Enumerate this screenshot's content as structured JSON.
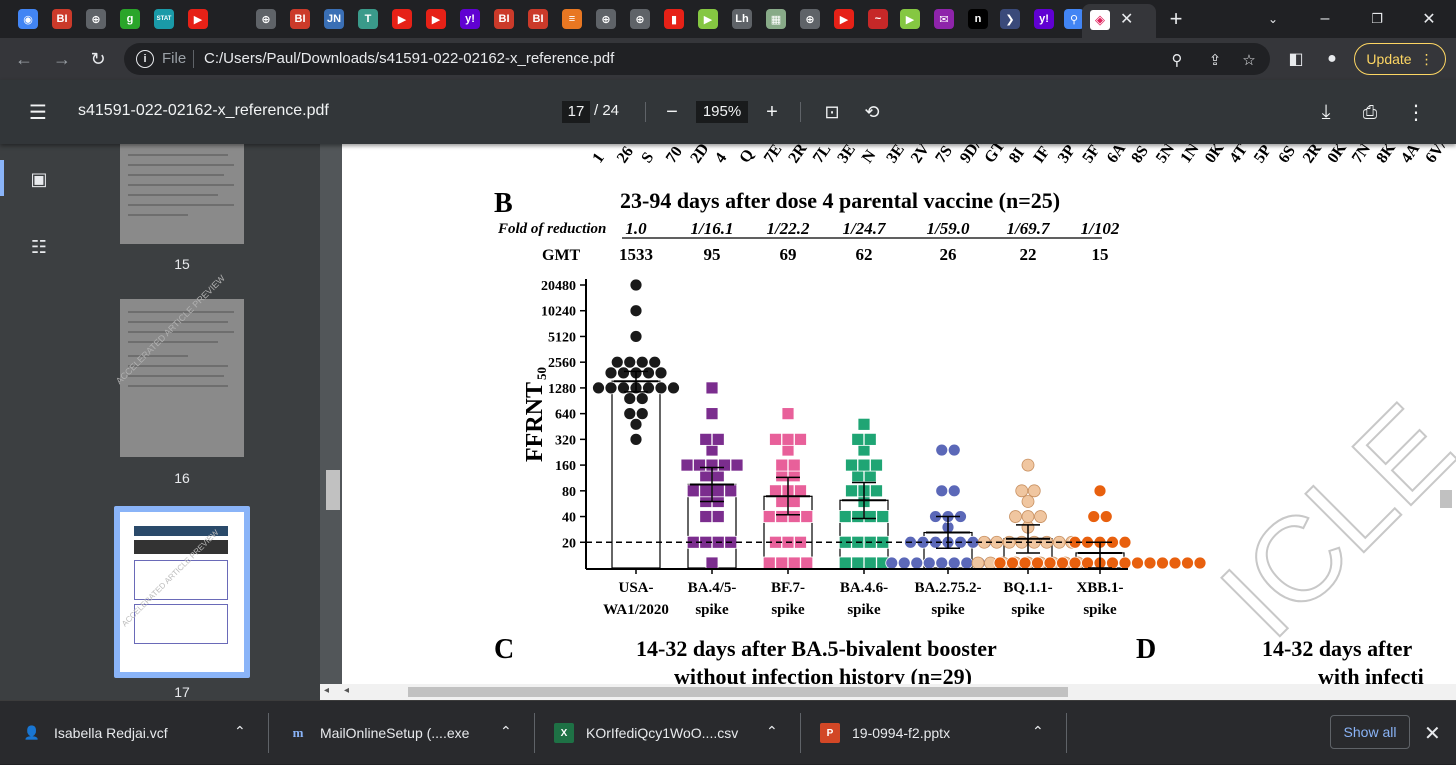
{
  "browser": {
    "active_tab_close": "✕",
    "new_tab": "+",
    "url_scheme": "File",
    "url": "C:/Users/Paul/Downloads/s41591-022-02162-x_reference.pdf",
    "update_label": "Update",
    "tab_icons": [
      {
        "name": "globe",
        "glyph": "◉",
        "color": "#4285f4"
      },
      {
        "name": "bi",
        "glyph": "BI",
        "color": "#cb3a2a"
      },
      {
        "name": "globe",
        "glyph": "⊕",
        "color": "#5f6368"
      },
      {
        "name": "g",
        "glyph": "g",
        "color": "#2aa52a"
      },
      {
        "name": "stat",
        "glyph": "STAT",
        "color": "#1a9aa8"
      },
      {
        "name": "youtube",
        "glyph": "▶",
        "color": "#e62117"
      },
      {
        "name": "globe",
        "glyph": "⊕",
        "color": "#5f6368"
      },
      {
        "name": "bi",
        "glyph": "BI",
        "color": "#cb3a2a"
      },
      {
        "name": "jn",
        "glyph": "JN",
        "color": "#3a6fb5"
      },
      {
        "name": "tg",
        "glyph": "T",
        "color": "#3a9a8a"
      },
      {
        "name": "youtube",
        "glyph": "▶",
        "color": "#e62117"
      },
      {
        "name": "youtube",
        "glyph": "▶",
        "color": "#e62117"
      },
      {
        "name": "yahoo",
        "glyph": "y!",
        "color": "#6001d2"
      },
      {
        "name": "bi",
        "glyph": "BI",
        "color": "#cb3a2a"
      },
      {
        "name": "bi",
        "glyph": "BI",
        "color": "#cb3a2a"
      },
      {
        "name": "stack",
        "glyph": "≡",
        "color": "#e87722"
      },
      {
        "name": "globe",
        "glyph": "⊕",
        "color": "#5f6368"
      },
      {
        "name": "globe",
        "glyph": "⊕",
        "color": "#5f6368"
      },
      {
        "name": "podcast",
        "glyph": "▮",
        "color": "#e62117"
      },
      {
        "name": "rumble",
        "glyph": "▶",
        "color": "#85c742"
      },
      {
        "name": "lh",
        "glyph": "Lh",
        "color": "#5f6368"
      },
      {
        "name": "grid",
        "glyph": "▦",
        "color": "#88aa88"
      },
      {
        "name": "globe",
        "glyph": "⊕",
        "color": "#5f6368"
      },
      {
        "name": "youtube",
        "glyph": "▶",
        "color": "#e62117"
      },
      {
        "name": "bird",
        "glyph": "~",
        "color": "#c62828"
      },
      {
        "name": "rumble",
        "glyph": "▶",
        "color": "#85c742"
      },
      {
        "name": "mail",
        "glyph": "✉",
        "color": "#8e24aa"
      },
      {
        "name": "n",
        "glyph": "n",
        "color": "#000000"
      },
      {
        "name": "d",
        "glyph": "❯",
        "color": "#3a4a7a"
      },
      {
        "name": "yahoo",
        "glyph": "y!",
        "color": "#6001d2"
      },
      {
        "name": "search",
        "glyph": "⚲",
        "color": "#4285f4"
      },
      {
        "name": "shield",
        "glyph": "◈",
        "color": "#e0245e"
      }
    ]
  },
  "pdf": {
    "file_title": "s41591-022-02162-x_reference.pdf",
    "page_current": "17",
    "page_total": "/ 24",
    "zoom": "195%",
    "thumbnails": [
      {
        "label": "15"
      },
      {
        "label": "16"
      },
      {
        "label": "17"
      }
    ],
    "watermark_text": "ACCELERATED ARTICLE PREVIEW",
    "watermark_visible": "ICLE",
    "next_panel_c_label": "C",
    "next_panel_c_title_1": "14-32 days after BA.5-bivalent booster",
    "next_panel_c_title_2": "without infection history (n=29)",
    "next_panel_d_label": "D",
    "next_panel_d_title_1": "14-32 days after",
    "next_panel_d_title_2": "with infecti"
  },
  "chart_data": {
    "type": "scatter",
    "panel_label": "B",
    "title": "23-94 days after dose 4 parental vaccine (n=25)",
    "fold_label": "Fold of reduction",
    "fold_values": [
      "1.0",
      "1/16.1",
      "1/22.2",
      "1/24.7",
      "1/59.0",
      "1/69.7",
      "1/102"
    ],
    "gmt_label": "GMT",
    "gmt_values": [
      "1533",
      "95",
      "69",
      "62",
      "26",
      "22",
      "15"
    ],
    "gmt_numbers": [
      1533,
      95,
      69,
      62,
      26,
      22,
      15
    ],
    "ylabel": "FFRNT",
    "ylabel_sub": "50",
    "yticks": [
      "20480",
      "10240",
      "5120",
      "2560",
      "1280",
      "640",
      "320",
      "160",
      "80",
      "40",
      "20"
    ],
    "ytick_values": [
      20480,
      10240,
      5120,
      2560,
      1280,
      640,
      320,
      160,
      80,
      40,
      20
    ],
    "ylim": [
      10,
      20480
    ],
    "yscale": "log2",
    "detection_limit": 20,
    "categories": [
      {
        "line1": "USA-",
        "line2": "WA1/2020"
      },
      {
        "line1": "BA.4/5-",
        "line2": "spike"
      },
      {
        "line1": "BF.7-",
        "line2": "spike"
      },
      {
        "line1": "BA.4.6-",
        "line2": "spike"
      },
      {
        "line1": "BA.2.75.2-",
        "line2": "spike"
      },
      {
        "line1": "BQ.1.1-",
        "line2": "spike"
      },
      {
        "line1": "XBB.1-",
        "line2": "spike"
      }
    ],
    "series": [
      {
        "name": "USA-WA1/2020",
        "color": "#1a1a1a",
        "marker": "circle",
        "err": [
          1150,
          2000
        ],
        "values": [
          20480,
          10240,
          5120,
          2560,
          2560,
          2560,
          2560,
          1920,
          1920,
          1920,
          1920,
          1920,
          1280,
          1280,
          1280,
          1280,
          1280,
          1280,
          1280,
          960,
          960,
          640,
          640,
          480,
          320
        ]
      },
      {
        "name": "BA.4/5-spike",
        "color": "#7b2d8e",
        "marker": "square",
        "err": [
          60,
          150
        ],
        "values": [
          1280,
          640,
          320,
          320,
          240,
          160,
          160,
          160,
          160,
          160,
          120,
          120,
          80,
          80,
          80,
          80,
          60,
          60,
          40,
          40,
          20,
          20,
          20,
          20,
          10
        ]
      },
      {
        "name": "BF.7-spike",
        "color": "#e8609a",
        "marker": "square",
        "err": [
          42,
          115
        ],
        "values": [
          640,
          320,
          320,
          320,
          240,
          160,
          160,
          120,
          120,
          80,
          80,
          80,
          60,
          60,
          40,
          40,
          40,
          40,
          20,
          20,
          20,
          10,
          10,
          10,
          10
        ]
      },
      {
        "name": "BA.4.6-spike",
        "color": "#1fa574",
        "marker": "square",
        "err": [
          38,
          100
        ],
        "values": [
          480,
          320,
          320,
          240,
          160,
          160,
          160,
          120,
          120,
          80,
          80,
          80,
          60,
          40,
          40,
          40,
          40,
          20,
          20,
          20,
          20,
          10,
          10,
          10,
          10
        ]
      },
      {
        "name": "BA.2.75.2-spike",
        "color": "#5b68b8",
        "marker": "circle",
        "err": [
          17,
          40
        ],
        "values": [
          240,
          240,
          80,
          80,
          40,
          40,
          40,
          30,
          20,
          20,
          20,
          20,
          20,
          20,
          20,
          10,
          10,
          10,
          10,
          10,
          10,
          10,
          10,
          10,
          10
        ]
      },
      {
        "name": "BQ.1.1-spike",
        "color": "#f0c6a0",
        "marker": "circle",
        "err": [
          15,
          32
        ],
        "values": [
          160,
          80,
          80,
          60,
          40,
          40,
          40,
          30,
          20,
          20,
          20,
          20,
          20,
          20,
          20,
          20,
          10,
          10,
          10,
          10,
          10,
          10,
          10,
          10,
          10
        ]
      },
      {
        "name": "XBB.1-spike",
        "color": "#e8600e",
        "marker": "circle",
        "err": [
          10,
          20
        ],
        "values": [
          80,
          40,
          40,
          20,
          20,
          20,
          20,
          20,
          10,
          10,
          10,
          10,
          10,
          10,
          10,
          10,
          10,
          10,
          10,
          10,
          10,
          10,
          10,
          10,
          10
        ]
      }
    ]
  },
  "downloads": {
    "items": [
      {
        "name": "Isabella Redjai.vcf",
        "icon": "contact-icon"
      },
      {
        "name": "MailOnlineSetup (....exe",
        "icon": "m-icon"
      },
      {
        "name": "KOrIfediQcy1WoO....csv",
        "icon": "excel-icon"
      },
      {
        "name": "19-0994-f2.pptx",
        "icon": "pptx-icon"
      }
    ],
    "show_all": "Show all"
  }
}
